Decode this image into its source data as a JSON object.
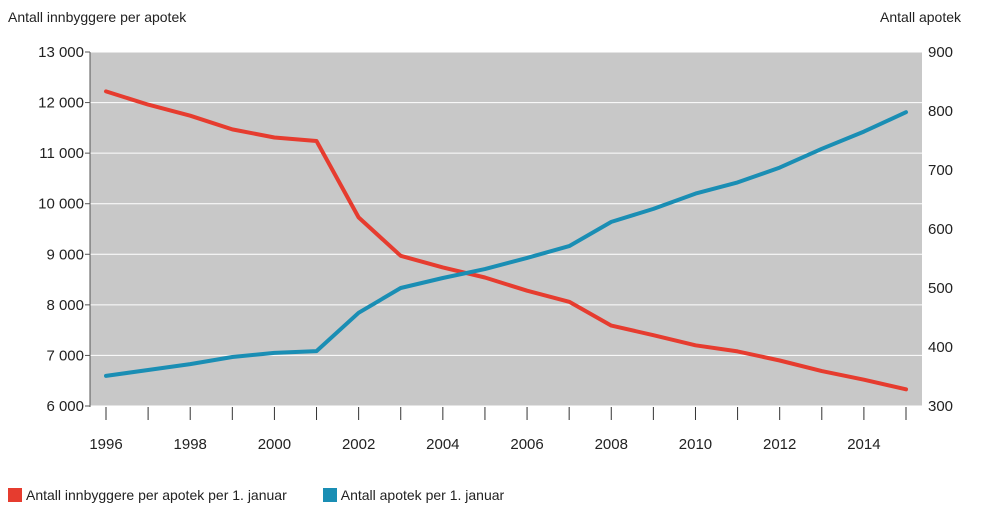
{
  "chart_data": {
    "type": "line",
    "x": [
      1996,
      1997,
      1998,
      1999,
      2000,
      2001,
      2002,
      2003,
      2004,
      2005,
      2006,
      2007,
      2008,
      2009,
      2010,
      2011,
      2012,
      2013,
      2014,
      2015
    ],
    "x_tick_labels": [
      "1996",
      "1998",
      "2000",
      "2002",
      "2004",
      "2006",
      "2008",
      "2010",
      "2012",
      "2014"
    ],
    "ylabel_left": "Antall innbyggere per apotek",
    "ylabel_right": "Antall apotek",
    "ylim_left": [
      6000,
      13000
    ],
    "ylim_right": [
      300,
      900
    ],
    "y_tick_labels_left": [
      "6 000",
      "7 000",
      "8 000",
      "9 000",
      "10 000",
      "11 000",
      "12 000",
      "13 000"
    ],
    "y_tick_labels_right": [
      "300",
      "400",
      "500",
      "600",
      "700",
      "800",
      "900"
    ],
    "grid": true,
    "legend_position": "bottom-left",
    "series": [
      {
        "name": "Antall innbyggere per apotek per 1. januar",
        "axis": "left",
        "color": "#e63c2f",
        "values": [
          12220,
          11960,
          11740,
          11470,
          11310,
          11240,
          9730,
          8970,
          8740,
          8540,
          8280,
          8060,
          7590,
          7400,
          7200,
          7080,
          6900,
          6690,
          6520,
          6330
        ]
      },
      {
        "name": "Antall apotek per 1. januar",
        "axis": "right",
        "color": "#1a8eb4",
        "values": [
          351,
          361,
          371,
          383,
          390,
          393,
          458,
          500,
          517,
          532,
          551,
          571,
          612,
          634,
          660,
          679,
          704,
          736,
          765,
          798
        ]
      }
    ],
    "plot_background": "#c8c8c8"
  }
}
